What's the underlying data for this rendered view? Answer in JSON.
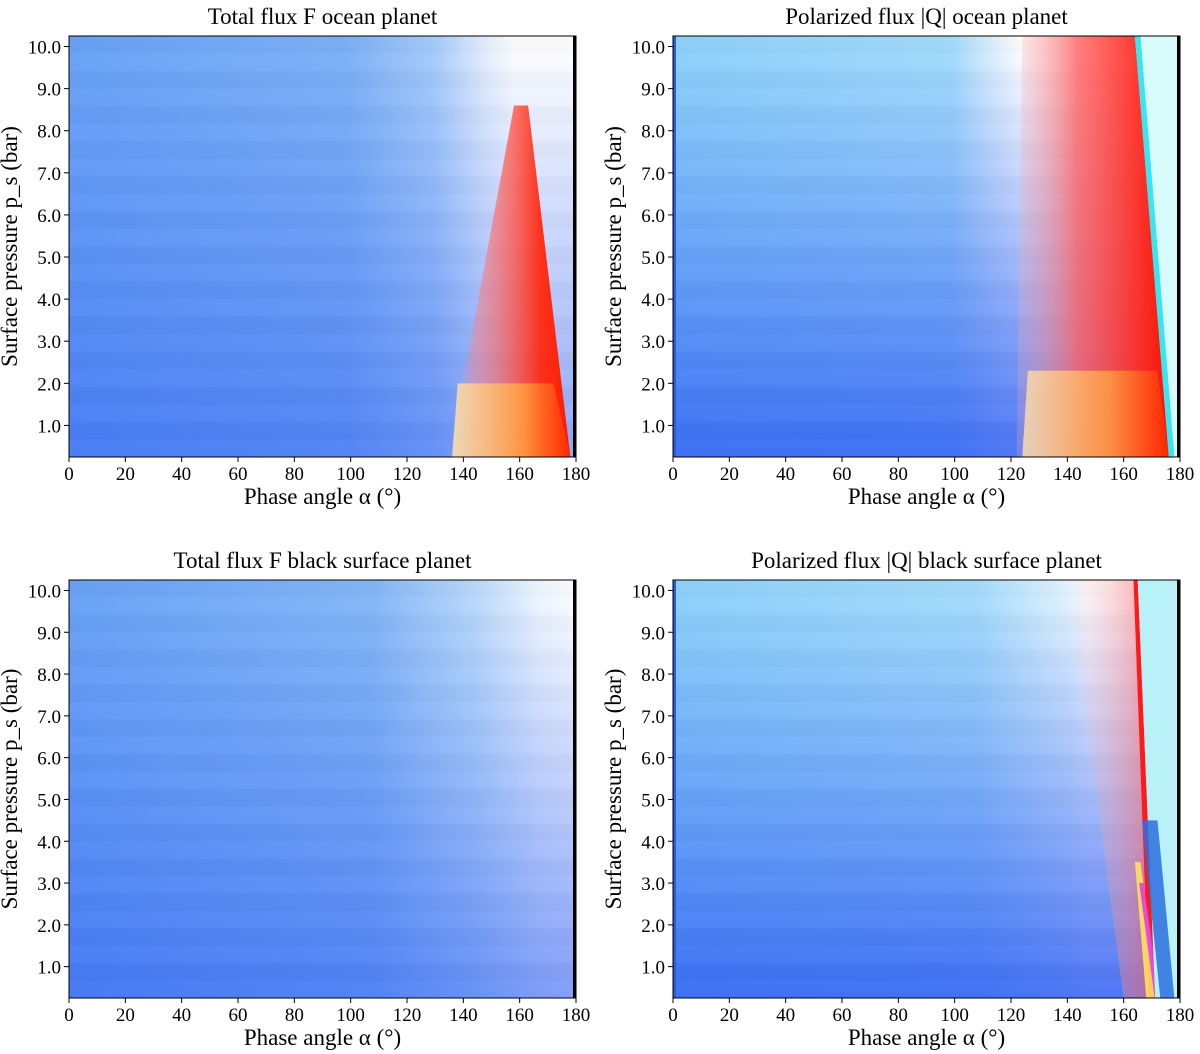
{
  "chart_data": [
    {
      "type": "heatmap",
      "title": "Total flux F ocean planet",
      "xlabel": "Phase angle α (°)",
      "ylabel": "Surface pressure p_s (bar)",
      "xlim": [
        0,
        180
      ],
      "ylim": [
        0.25,
        10.25
      ],
      "xticks": [
        "0",
        "20",
        "40",
        "60",
        "80",
        "100",
        "120",
        "140",
        "160",
        "180"
      ],
      "yticks": [
        "1.0",
        "2.0",
        "3.0",
        "4.0",
        "5.0",
        "6.0",
        "7.0",
        "8.0",
        "9.0",
        "10.0"
      ],
      "colormap": "blue-white-red-yellow (diverging)",
      "description_values": {
        "white_transition_alpha_at_low_p": 135,
        "white_transition_alpha_at_high_p": 160,
        "red_region_alpha_range": [
          135,
          178
        ]
      },
      "colors": {
        "low": "#3a6df5",
        "mid": "#ffffff",
        "high": "#ff2a00",
        "peak": "#ffe0a0"
      }
    },
    {
      "type": "heatmap",
      "title": "Polarized flux |Q| ocean planet",
      "xlabel": "Phase angle α (°)",
      "ylabel": "Surface pressure p_s (bar)",
      "xlim": [
        0,
        180
      ],
      "ylim": [
        0.25,
        10.25
      ],
      "xticks": [
        "0",
        "20",
        "40",
        "60",
        "80",
        "100",
        "120",
        "140",
        "160",
        "180"
      ],
      "yticks": [
        "1.0",
        "2.0",
        "3.0",
        "4.0",
        "5.0",
        "6.0",
        "7.0",
        "8.0",
        "9.0",
        "10.0"
      ],
      "colormap": "blue-white-red-yellow (diverging)",
      "description_values": {
        "white_transition_alpha_at_low_p": 122,
        "white_transition_alpha_at_high_p": 120,
        "red_region_alpha_range": [
          122,
          176
        ],
        "cyan_band_alpha_at_high_p": 164
      },
      "colors": {
        "low": "#8fd8fb",
        "mid": "#ffffff",
        "high": "#ff1a00",
        "peak": "#ffe0a0"
      }
    },
    {
      "type": "heatmap",
      "title": "Total flux F black surface planet",
      "xlabel": "Phase angle α (°)",
      "ylabel": "Surface pressure p_s (bar)",
      "xlim": [
        0,
        180
      ],
      "ylim": [
        0.25,
        10.25
      ],
      "xticks": [
        "0",
        "20",
        "40",
        "60",
        "80",
        "100",
        "120",
        "140",
        "160",
        "180"
      ],
      "yticks": [
        "1.0",
        "2.0",
        "3.0",
        "4.0",
        "5.0",
        "6.0",
        "7.0",
        "8.0",
        "9.0",
        "10.0"
      ],
      "colormap": "blue-white (sequential)",
      "description_values": {
        "white_transition_alpha_at_high_p": 170,
        "white_transition_alpha_at_low_p": 178
      },
      "colors": {
        "low": "#3a6df5",
        "mid": "#ffffff"
      }
    },
    {
      "type": "heatmap",
      "title": "Polarized flux |Q| black surface planet",
      "xlabel": "Phase angle α (°)",
      "ylabel": "Surface pressure p_s (bar)",
      "xlim": [
        0,
        180
      ],
      "ylim": [
        0.25,
        10.25
      ],
      "xticks": [
        "0",
        "20",
        "40",
        "60",
        "80",
        "100",
        "120",
        "140",
        "160",
        "180"
      ],
      "yticks": [
        "1.0",
        "2.0",
        "3.0",
        "4.0",
        "5.0",
        "6.0",
        "7.0",
        "8.0",
        "9.0",
        "10.0"
      ],
      "colormap": "blue-white-red-yellow (diverging)",
      "description_values": {
        "white_transition_alpha_at_high_p": 148,
        "red_band_alpha_at_high_p": 164,
        "red_band_alpha_at_low_p": 170,
        "cyan_band_alpha_range": [
          166,
          180
        ]
      },
      "colors": {
        "low": "#8fd8fb",
        "mid": "#ffffff",
        "high": "#ff1a00",
        "peak": "#ffe060"
      }
    }
  ]
}
